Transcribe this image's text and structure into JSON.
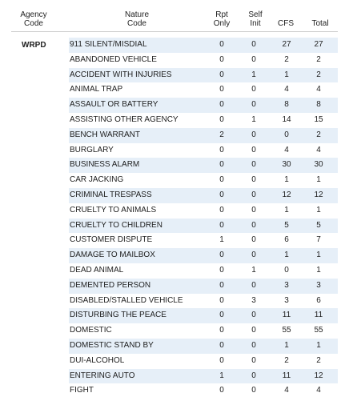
{
  "headers": {
    "agency_line1": "Agency",
    "agency_line2": "Code",
    "nature_line1": "Nature",
    "nature_line2": "Code",
    "rpt_line1": "Rpt",
    "rpt_line2": "Only",
    "self_line1": "Self",
    "self_line2": "Init",
    "cfs": "CFS",
    "total": "Total"
  },
  "agency": "WRPD",
  "rows": [
    {
      "nature": "911 SILENT/MISDIAL",
      "rpt": "0",
      "self": "0",
      "cfs": "27",
      "total": "27"
    },
    {
      "nature": "ABANDONED VEHICLE",
      "rpt": "0",
      "self": "0",
      "cfs": "2",
      "total": "2"
    },
    {
      "nature": "ACCIDENT WITH INJURIES",
      "rpt": "0",
      "self": "1",
      "cfs": "1",
      "total": "2"
    },
    {
      "nature": "ANIMAL TRAP",
      "rpt": "0",
      "self": "0",
      "cfs": "4",
      "total": "4"
    },
    {
      "nature": "ASSAULT OR BATTERY",
      "rpt": "0",
      "self": "0",
      "cfs": "8",
      "total": "8"
    },
    {
      "nature": "ASSISTING OTHER AGENCY",
      "rpt": "0",
      "self": "1",
      "cfs": "14",
      "total": "15"
    },
    {
      "nature": "BENCH WARRANT",
      "rpt": "2",
      "self": "0",
      "cfs": "0",
      "total": "2"
    },
    {
      "nature": "BURGLARY",
      "rpt": "0",
      "self": "0",
      "cfs": "4",
      "total": "4"
    },
    {
      "nature": "BUSINESS ALARM",
      "rpt": "0",
      "self": "0",
      "cfs": "30",
      "total": "30"
    },
    {
      "nature": "CAR JACKING",
      "rpt": "0",
      "self": "0",
      "cfs": "1",
      "total": "1"
    },
    {
      "nature": "CRIMINAL TRESPASS",
      "rpt": "0",
      "self": "0",
      "cfs": "12",
      "total": "12"
    },
    {
      "nature": "CRUELTY TO ANIMALS",
      "rpt": "0",
      "self": "0",
      "cfs": "1",
      "total": "1"
    },
    {
      "nature": "CRUELTY TO CHILDREN",
      "rpt": "0",
      "self": "0",
      "cfs": "5",
      "total": "5"
    },
    {
      "nature": "CUSTOMER DISPUTE",
      "rpt": "1",
      "self": "0",
      "cfs": "6",
      "total": "7"
    },
    {
      "nature": "DAMAGE TO MAILBOX",
      "rpt": "0",
      "self": "0",
      "cfs": "1",
      "total": "1"
    },
    {
      "nature": "DEAD ANIMAL",
      "rpt": "0",
      "self": "1",
      "cfs": "0",
      "total": "1"
    },
    {
      "nature": "DEMENTED PERSON",
      "rpt": "0",
      "self": "0",
      "cfs": "3",
      "total": "3"
    },
    {
      "nature": "DISABLED/STALLED VEHICLE",
      "rpt": "0",
      "self": "3",
      "cfs": "3",
      "total": "6"
    },
    {
      "nature": "DISTURBING THE PEACE",
      "rpt": "0",
      "self": "0",
      "cfs": "11",
      "total": "11"
    },
    {
      "nature": "DOMESTIC",
      "rpt": "0",
      "self": "0",
      "cfs": "55",
      "total": "55"
    },
    {
      "nature": "DOMESTIC STAND BY",
      "rpt": "0",
      "self": "0",
      "cfs": "1",
      "total": "1"
    },
    {
      "nature": "DUI-ALCOHOL",
      "rpt": "0",
      "self": "0",
      "cfs": "2",
      "total": "2"
    },
    {
      "nature": "ENTERING AUTO",
      "rpt": "1",
      "self": "0",
      "cfs": "11",
      "total": "12"
    },
    {
      "nature": "FIGHT",
      "rpt": "0",
      "self": "0",
      "cfs": "4",
      "total": "4"
    }
  ]
}
